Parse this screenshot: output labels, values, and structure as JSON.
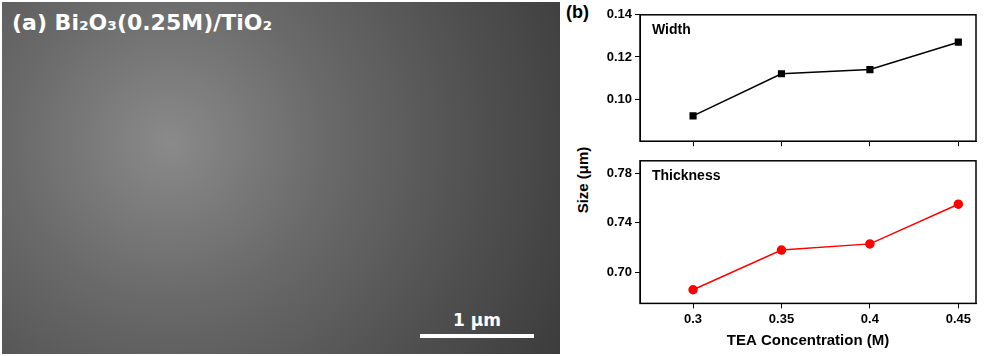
{
  "chart_data": [
    {
      "type": "line",
      "annotation": "Width",
      "x": [
        0.3,
        0.35,
        0.4,
        0.45
      ],
      "series": [
        {
          "name": "Width",
          "color": "#000000",
          "marker": "square",
          "values": [
            0.092,
            0.112,
            0.114,
            0.127
          ]
        }
      ],
      "xlim": [
        0.27,
        0.46
      ],
      "xticks": [
        0.3,
        0.35,
        0.4,
        0.45
      ],
      "ylim": [
        0.08,
        0.14
      ],
      "yticks": [
        {
          "value": 0.1,
          "label": "0.10"
        },
        0.12,
        0.14
      ],
      "grid": false,
      "tick_labels": "y"
    },
    {
      "type": "line",
      "annotation": "Thickness",
      "x_label": "TEA Concentration (M)",
      "x": [
        0.3,
        0.35,
        0.4,
        0.45
      ],
      "series": [
        {
          "name": "Thickness",
          "color": "#ff0000",
          "marker": "circle",
          "values": [
            0.686,
            0.718,
            0.723,
            0.755
          ]
        }
      ],
      "xlim": [
        0.27,
        0.46
      ],
      "xticks": [
        0.3,
        0.35,
        0.4,
        0.45
      ],
      "ylim": [
        0.675,
        0.79
      ],
      "yticks": [
        {
          "value": 0.7,
          "label": "0.70"
        },
        0.74,
        0.78
      ],
      "grid": false,
      "tick_labels": true
    }
  ],
  "figure": {
    "panel_a": {
      "title": "(a) Bi₂O₃(0.25M)/TiO₂",
      "scale_bar": "1 μm"
    },
    "panel_b_label": "(b)",
    "y_label": "Size (μm)"
  }
}
